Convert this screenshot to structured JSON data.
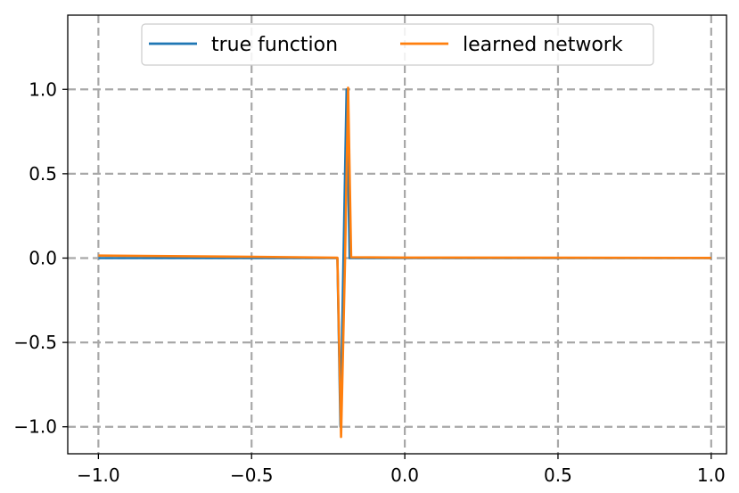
{
  "chart_data": {
    "type": "line",
    "title": "",
    "xlabel": "",
    "ylabel": "",
    "xlim": [
      -1.1,
      1.05
    ],
    "ylim": [
      -1.16,
      1.44
    ],
    "xticks": [
      -1.0,
      -0.5,
      0.0,
      0.5,
      1.0
    ],
    "xtick_labels": [
      "−1.0",
      "−0.5",
      "0.0",
      "0.5",
      "1.0"
    ],
    "yticks": [
      -1.0,
      -0.5,
      0.0,
      0.5,
      1.0
    ],
    "ytick_labels": [
      "−1.0",
      "−0.5",
      "0.0",
      "0.5",
      "1.0"
    ],
    "grid": true,
    "legend_position": "top-center",
    "series": [
      {
        "name": "true function",
        "color": "#1f77b4",
        "x": [
          -1.0,
          -0.22,
          -0.21,
          -0.2,
          -0.19,
          -0.18,
          0.0,
          1.0
        ],
        "y": [
          0.0,
          0.0,
          -1.0,
          0.0,
          1.0,
          0.0,
          0.0,
          0.0
        ]
      },
      {
        "name": "learned network",
        "color": "#ff7f0e",
        "x": [
          -1.0,
          -0.5,
          -0.22,
          -0.208,
          -0.195,
          -0.185,
          -0.175,
          0.0,
          0.5,
          1.0
        ],
        "y": [
          0.015,
          0.008,
          0.002,
          -1.06,
          0.0,
          1.01,
          0.005,
          0.003,
          0.002,
          0.001
        ]
      }
    ]
  }
}
